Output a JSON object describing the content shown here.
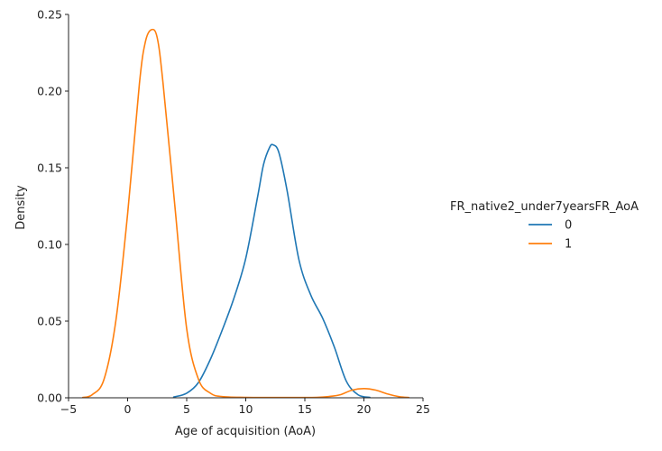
{
  "chart_data": {
    "type": "line",
    "xlabel": "Age of acquisition (AoA)",
    "ylabel": "Density",
    "xlim": [
      -5,
      25
    ],
    "ylim": [
      0,
      0.25
    ],
    "x_ticks": [
      "−5",
      "0",
      "5",
      "10",
      "15",
      "20",
      "25"
    ],
    "y_ticks": [
      "0.00",
      "0.05",
      "0.10",
      "0.15",
      "0.20",
      "0.25"
    ],
    "grid": false,
    "legend": {
      "title": "FR_native2_under7yearsFR_AoA",
      "placement": "right"
    },
    "series": [
      {
        "name": "0",
        "color": "#1f77b4",
        "x": [
          3.9,
          5.0,
          6.0,
          7.0,
          8.0,
          9.0,
          10.0,
          11.0,
          11.5,
          12.0,
          12.3,
          12.8,
          13.5,
          14.5,
          15.5,
          16.5,
          17.5,
          18.5,
          19.5,
          20.5
        ],
        "y": [
          0.0005,
          0.003,
          0.01,
          0.025,
          0.044,
          0.065,
          0.091,
          0.131,
          0.152,
          0.163,
          0.165,
          0.16,
          0.135,
          0.09,
          0.067,
          0.052,
          0.033,
          0.011,
          0.002,
          0.0003
        ]
      },
      {
        "name": "1",
        "color": "#ff7f0e",
        "x": [
          -3.8,
          -3.0,
          -2.0,
          -1.0,
          0.0,
          1.0,
          1.5,
          2.0,
          2.5,
          3.0,
          4.0,
          5.0,
          6.0,
          7.0,
          8.0,
          10.0,
          12.0,
          14.0,
          16.0,
          17.0,
          18.0,
          19.0,
          20.0,
          21.0,
          22.0,
          23.0,
          23.8
        ],
        "y": [
          0.0002,
          0.002,
          0.012,
          0.05,
          0.12,
          0.205,
          0.232,
          0.24,
          0.235,
          0.205,
          0.125,
          0.045,
          0.012,
          0.003,
          0.0008,
          0.0003,
          0.0002,
          0.0002,
          0.0003,
          0.0008,
          0.002,
          0.005,
          0.006,
          0.005,
          0.0025,
          0.0007,
          0.0002
        ]
      }
    ]
  }
}
